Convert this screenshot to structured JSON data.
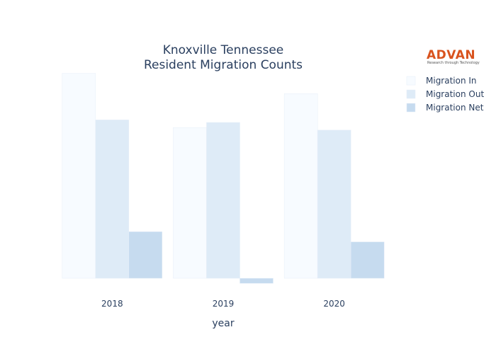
{
  "chart_data": {
    "type": "bar",
    "title_lines": [
      "Knoxville Tennessee",
      "Resident Migration Counts"
    ],
    "xlabel": "year",
    "ylabel": "",
    "categories": [
      "2018",
      "2019",
      "2020"
    ],
    "series": [
      {
        "name": "Migration In",
        "color": "#f7fbff",
        "values": [
          2420,
          1780,
          2180
        ]
      },
      {
        "name": "Migration Out",
        "color": "#deebf7",
        "values": [
          1870,
          1840,
          1750
        ]
      },
      {
        "name": "Migration Net",
        "color": "#c6dbef",
        "values": [
          550,
          -60,
          430
        ]
      }
    ],
    "ylim": [
      -100,
      2450
    ],
    "grid": false,
    "legend_position": "top-right"
  },
  "logo": {
    "brand": "ADVAN",
    "tagline": "Research through Technology"
  }
}
